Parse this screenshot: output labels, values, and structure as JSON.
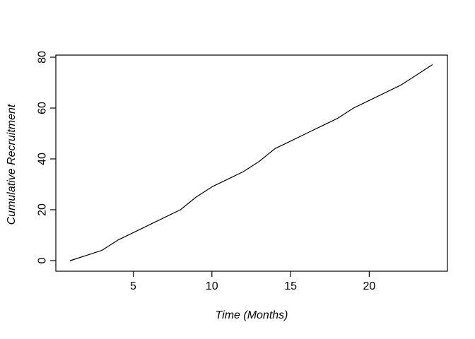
{
  "chart_data": {
    "type": "line",
    "title": "",
    "xlabel": "Time (Months)",
    "ylabel": "Cumulative Recruitment",
    "x": [
      1,
      2,
      3,
      4,
      5,
      6,
      7,
      8,
      9,
      10,
      11,
      12,
      13,
      14,
      15,
      16,
      17,
      18,
      19,
      20,
      21,
      22,
      23,
      24
    ],
    "y": [
      0,
      2,
      4,
      8,
      11,
      14,
      17,
      20,
      25,
      29,
      32,
      35,
      39,
      44,
      47,
      50,
      53,
      56,
      60,
      63,
      66,
      69,
      73,
      77
    ],
    "xlim": [
      0.08,
      24.97
    ],
    "ylim": [
      -4.17,
      80.83
    ],
    "x_ticks": [
      5,
      10,
      15,
      20
    ],
    "y_ticks": [
      0,
      20,
      40,
      60,
      80
    ],
    "line_color": "#000000",
    "axis_color": "#000000",
    "background_color": "#ffffff",
    "grid": false,
    "legend": "none"
  }
}
